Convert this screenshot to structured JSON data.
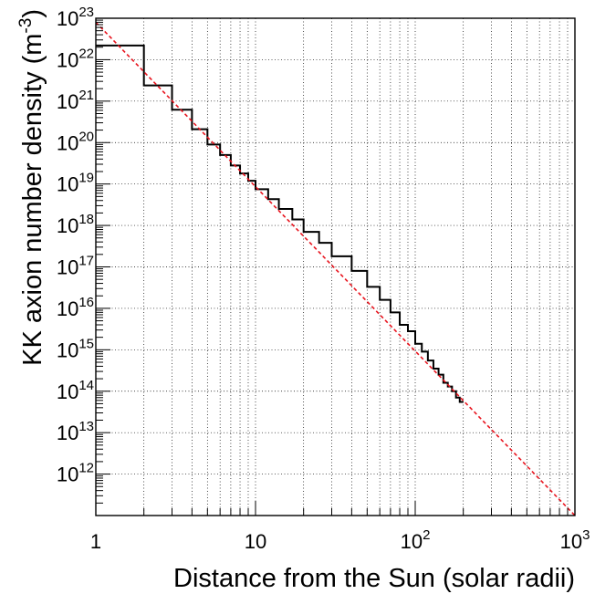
{
  "chart_data": {
    "type": "line",
    "title": "",
    "xlabel": "Distance from the Sun (solar radii)",
    "ylabel_main": "KK axion number density (m",
    "ylabel_sup": "-3",
    "ylabel_close": ")",
    "xscale": "log",
    "yscale": "log",
    "xlim": [
      1,
      1000
    ],
    "ylim": [
      100000000000.0,
      1e+23
    ],
    "grid": true,
    "grid_style": "dotted",
    "x_ticks": [
      {
        "value": 1,
        "base": "1",
        "exp": ""
      },
      {
        "value": 10,
        "base": "10",
        "exp": ""
      },
      {
        "value": 100,
        "base": "10",
        "exp": "2"
      },
      {
        "value": 1000,
        "base": "10",
        "exp": "3"
      }
    ],
    "y_ticks": [
      {
        "value": 1000000000000.0,
        "base": "10",
        "exp": "12"
      },
      {
        "value": 10000000000000.0,
        "base": "10",
        "exp": "13"
      },
      {
        "value": 100000000000000.0,
        "base": "10",
        "exp": "14"
      },
      {
        "value": 1000000000000000.0,
        "base": "10",
        "exp": "15"
      },
      {
        "value": 1e+16,
        "base": "10",
        "exp": "16"
      },
      {
        "value": 1e+17,
        "base": "10",
        "exp": "17"
      },
      {
        "value": 1e+18,
        "base": "10",
        "exp": "18"
      },
      {
        "value": 1e+19,
        "base": "10",
        "exp": "19"
      },
      {
        "value": 1e+20,
        "base": "10",
        "exp": "20"
      },
      {
        "value": 1e+21,
        "base": "10",
        "exp": "21"
      },
      {
        "value": 1e+22,
        "base": "10",
        "exp": "22"
      },
      {
        "value": 1e+23,
        "base": "10",
        "exp": "23"
      }
    ],
    "series": [
      {
        "style": "histogram-step",
        "color": "#000000",
        "bin_edges": [
          1,
          2,
          3,
          4,
          5,
          6,
          7,
          8,
          9,
          10,
          12,
          14,
          17,
          20,
          25,
          30,
          40,
          50,
          60,
          70,
          80,
          90,
          100,
          110,
          120,
          130,
          140,
          150,
          160,
          170,
          180,
          190,
          200
        ],
        "values": [
          2.2e+22,
          2.4e+21,
          6.2e+20,
          2.1e+20,
          9e+19,
          5e+19,
          2.8e+19,
          1.8e+19,
          1.2e+19,
          7.5e+18,
          4.3e+18,
          2.5e+18,
          1.4e+18,
          7e+17,
          3.8e+17,
          1.8e+17,
          8e+16,
          3.3e+16,
          1.6e+16,
          8000000000000000.0,
          4000000000000000.0,
          2800000000000000.0,
          1400000000000000.0,
          900000000000000.0,
          550000000000000.0,
          350000000000000.0,
          250000000000000.0,
          160000000000000.0,
          130000000000000.0,
          100000000000000.0,
          70000000000000.0,
          55000000000000.0
        ]
      },
      {
        "style": "dashed-fit",
        "color": "#e8141e",
        "x": [
          1,
          1000
        ],
        "y": [
          8e+22,
          100000000000.0
        ]
      }
    ]
  }
}
